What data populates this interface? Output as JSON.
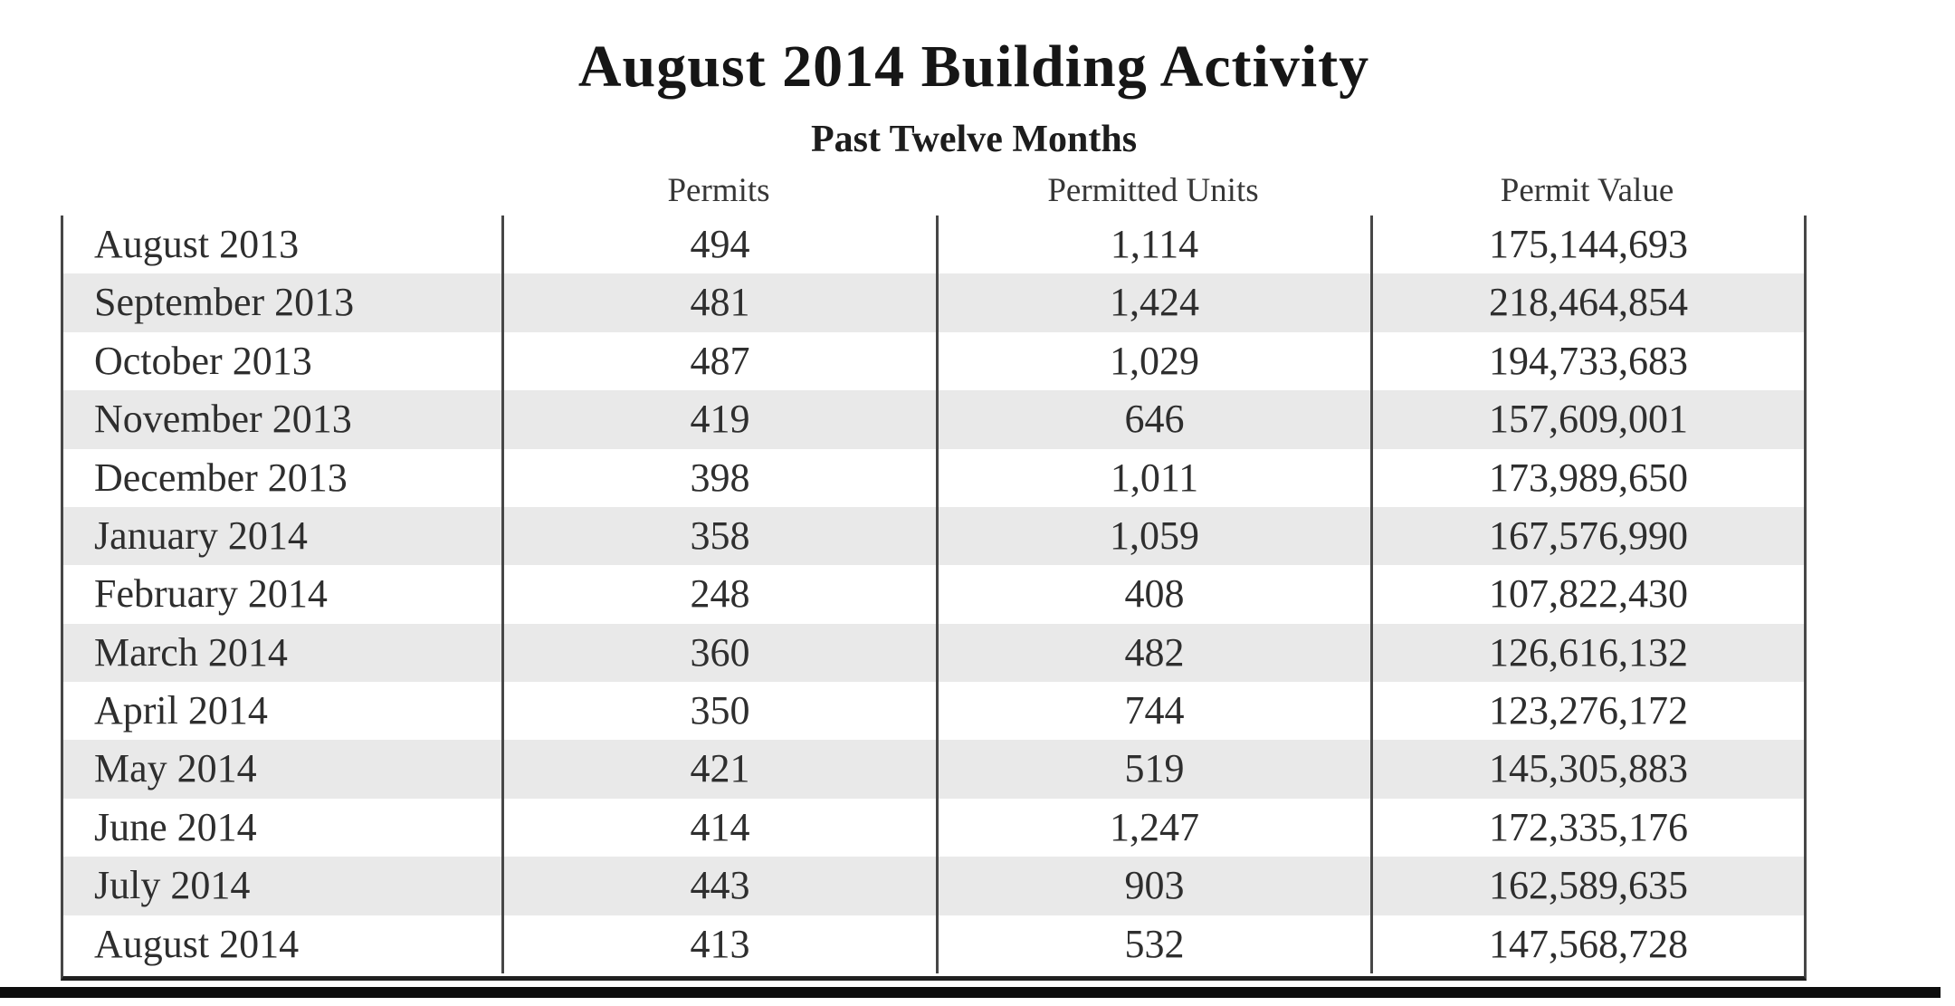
{
  "page": {
    "title": "August 2014 Building Activity",
    "subtitle": "Past Twelve Months"
  },
  "table": {
    "headers": [
      "Permits",
      "Permitted Units",
      "Permit Value"
    ],
    "rows": [
      {
        "month": "August 2013",
        "permits": "494",
        "units": "1,114",
        "value": "175,144,693"
      },
      {
        "month": "September 2013",
        "permits": "481",
        "units": "1,424",
        "value": "218,464,854"
      },
      {
        "month": "October 2013",
        "permits": "487",
        "units": "1,029",
        "value": "194,733,683"
      },
      {
        "month": "November 2013",
        "permits": "419",
        "units": "646",
        "value": "157,609,001"
      },
      {
        "month": "December 2013",
        "permits": "398",
        "units": "1,011",
        "value": "173,989,650"
      },
      {
        "month": "January 2014",
        "permits": "358",
        "units": "1,059",
        "value": "167,576,990"
      },
      {
        "month": "February 2014",
        "permits": "248",
        "units": "408",
        "value": "107,822,430"
      },
      {
        "month": "March 2014",
        "permits": "360",
        "units": "482",
        "value": "126,616,132"
      },
      {
        "month": "April 2014",
        "permits": "350",
        "units": "744",
        "value": "123,276,172"
      },
      {
        "month": "May 2014",
        "permits": "421",
        "units": "519",
        "value": "145,305,883"
      },
      {
        "month": "June 2014",
        "permits": "414",
        "units": "1,247",
        "value": "172,335,176"
      },
      {
        "month": "July 2014",
        "permits": "443",
        "units": "903",
        "value": "162,589,635"
      },
      {
        "month": "August 2014",
        "permits": "413",
        "units": "532",
        "value": "147,568,728"
      }
    ]
  },
  "colors": {
    "row_alt_background": "#e9e9e9",
    "table_line": "#474747",
    "bottom_bar": "#0d0d0d",
    "text": "#262626"
  }
}
